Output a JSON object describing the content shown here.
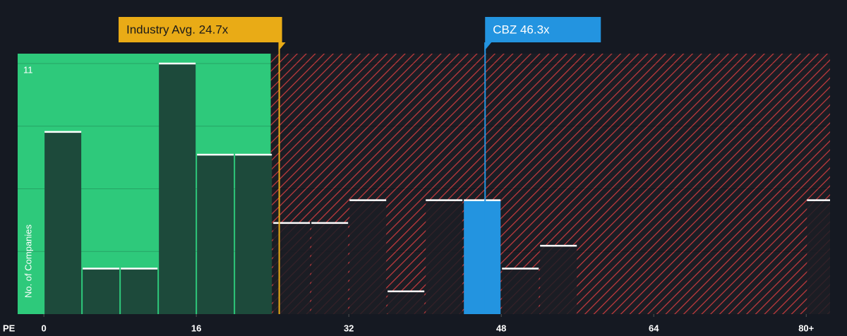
{
  "chart_data": {
    "type": "histogram",
    "bins": [
      0,
      4,
      8,
      12,
      16,
      20,
      24,
      28,
      32,
      36,
      40,
      44,
      48,
      52,
      56,
      60,
      64,
      68,
      72,
      76,
      80,
      84
    ],
    "values": [
      8,
      2,
      2,
      11,
      7,
      7,
      4,
      4,
      5,
      1,
      5,
      5,
      2,
      3,
      0,
      0,
      0,
      0,
      0,
      0,
      5
    ],
    "highlight_bin": 11,
    "xlabel": "PE",
    "ylabel": "No. of Companies",
    "xlim": [
      -2.75,
      82.5
    ],
    "ylim": [
      0,
      11
    ],
    "xticks": [
      0,
      16,
      32,
      48,
      64,
      {
        "value": 80,
        "label": "80+"
      }
    ],
    "yticks": [
      11
    ],
    "ygrid": [
      2.75,
      5.5,
      8.25,
      11
    ],
    "industry_avg": {
      "label": "Industry Avg. 24.7x",
      "value": 24.7,
      "color": "#e9ab16"
    },
    "company": {
      "label": "CBZ 46.3x",
      "value": 46.3,
      "color": "#2394e0"
    },
    "zone_colors": {
      "below": "#2ec97b",
      "above": "#c43a3d"
    }
  }
}
